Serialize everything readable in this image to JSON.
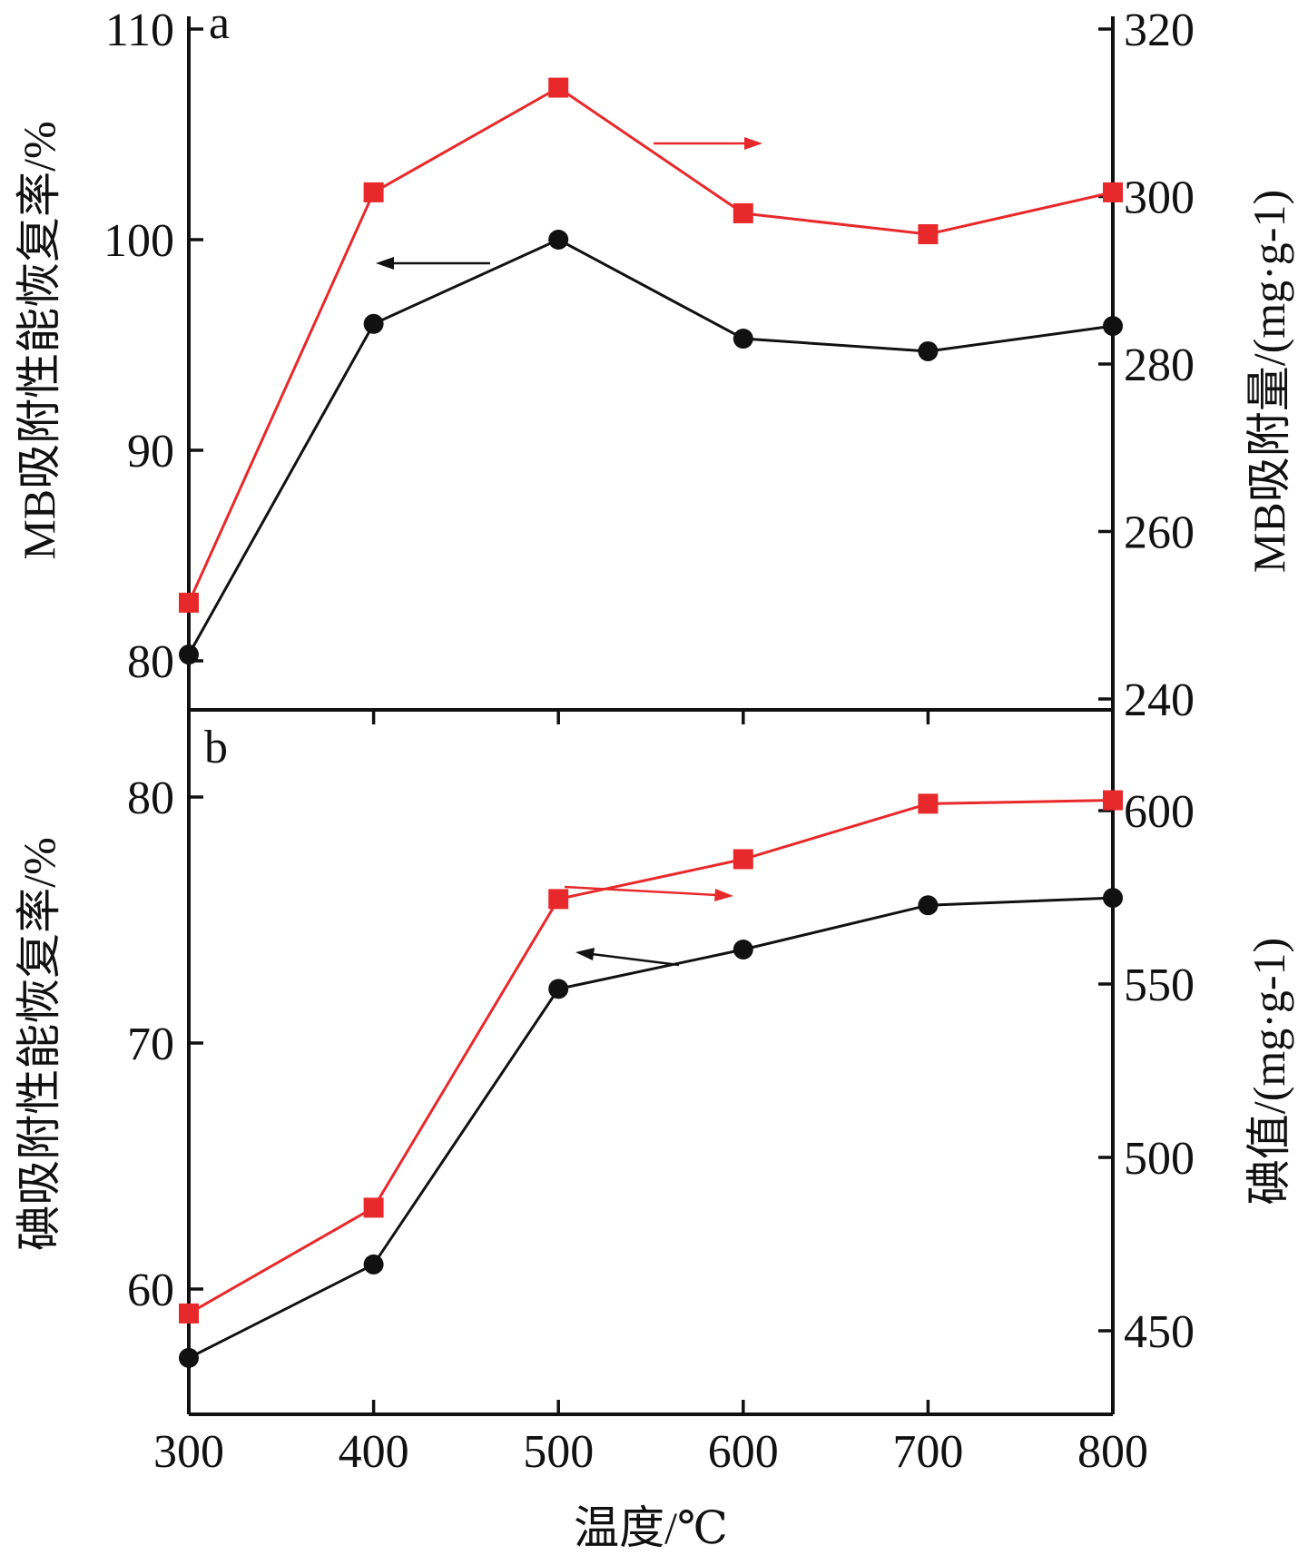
{
  "chart_data": [
    {
      "type": "line",
      "panel_label": "a",
      "x": [
        300,
        400,
        500,
        600,
        700,
        800
      ],
      "xlim": [
        300,
        800
      ],
      "ylabel_left": "MB吸附性能恢复率/%",
      "ylabel_right": "MB吸附量/(mg·g-1)",
      "ylim_left": [
        77,
        110
      ],
      "yticks_left": [
        80,
        90,
        100,
        110
      ],
      "ylim_right": [
        240,
        320
      ],
      "yticks_right": [
        240,
        260,
        280,
        300,
        320
      ],
      "series": [
        {
          "axis": "left",
          "marker": "circle",
          "color": "#111111",
          "values": [
            80.3,
            96.0,
            100.0,
            95.3,
            94.7,
            95.9
          ]
        },
        {
          "axis": "right",
          "marker": "square",
          "color": "#e8292b",
          "values": [
            251.5,
            300.5,
            313.0,
            298.0,
            295.5,
            300.5
          ]
        }
      ]
    },
    {
      "type": "line",
      "panel_label": "b",
      "xlabel": "温度/℃",
      "x": [
        300,
        400,
        500,
        600,
        700,
        800
      ],
      "xticks": [
        "300",
        "400",
        "500",
        "600",
        "700",
        "800"
      ],
      "xlim": [
        300,
        800
      ],
      "ylabel_left": "碘吸附性能恢复率/%",
      "ylabel_right": "碘值/(mg·g-1)",
      "ylim_left": [
        55,
        83
      ],
      "yticks_left": [
        60,
        70,
        80
      ],
      "ylim_right": [
        425,
        625
      ],
      "yticks_right": [
        450,
        500,
        550,
        600
      ],
      "series": [
        {
          "axis": "left",
          "marker": "circle",
          "color": "#111111",
          "values": [
            57.2,
            61.0,
            72.2,
            73.8,
            75.6,
            75.9
          ]
        },
        {
          "axis": "right",
          "marker": "square",
          "color": "#e8292b",
          "values": [
            455.0,
            485.5,
            574.5,
            586.0,
            602.0,
            603.0
          ]
        }
      ]
    }
  ]
}
